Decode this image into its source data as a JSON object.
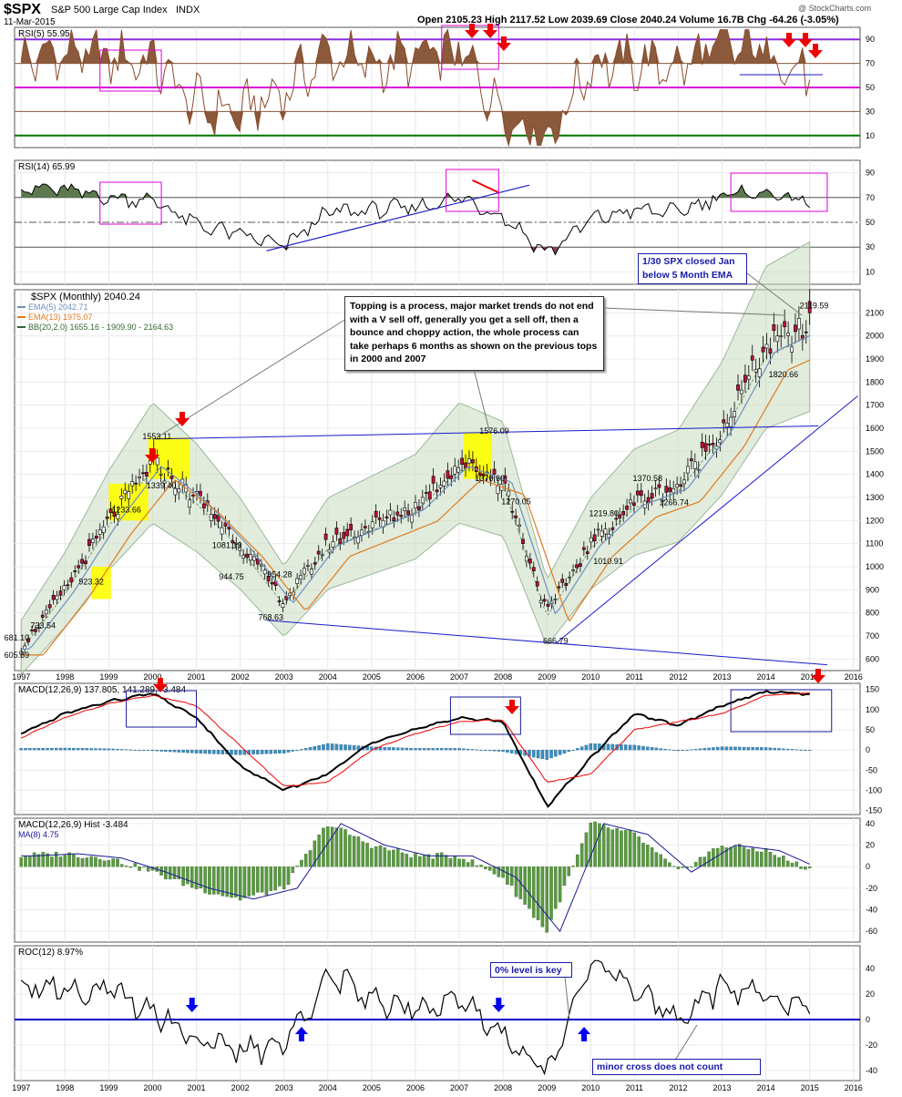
{
  "header": {
    "symbol": "$SPX",
    "name": "S&P 500 Large Cap Index",
    "exchange": "INDX",
    "date": "11-Mar-2015",
    "quote": "Open 2105.23  High 2117.52  Low 2039.69  Close 2040.24  Volume 16.7B  Chg -64.26 (-3.05%)",
    "watermark": "@ StockCharts.com"
  },
  "annotations": {
    "topping": "Topping is a process, major market trends do not end with a V sell off, generally you get a sell off, then a bounce and choppy action, the whole process can take perhaps 6 months as shown on the previous tops in 2000 and 2007",
    "closed": "1/30 SPX closed Jan below 5 Month EMA",
    "zero_level": "0% level is key",
    "minor_cross": "minor cross does not count"
  },
  "colors": {
    "rsi_fill": "#8b5a3c",
    "rsi14_fill": "#5d7a4f",
    "ema5": "#6f8fbf",
    "ema13": "#e07a1f",
    "band": "#c8dcc0",
    "hist": "#3a8fc0",
    "hist2": "#5a9a40",
    "trend": "#1a1acc",
    "magenta": "#dd00dd",
    "purple": "#8a2be2",
    "arrow_red": "#ee0000",
    "arrow_blue": "#0000ee",
    "highlight": "#ffff00"
  },
  "chart_data": [
    {
      "type": "line",
      "title": "RSI(5) 55.95",
      "x": [
        1997,
        1998,
        1999,
        2000,
        2001,
        2002,
        2003,
        2004,
        2005,
        2006,
        2007,
        2008,
        2009,
        2010,
        2011,
        2012,
        2013,
        2014,
        2015
      ],
      "series": [
        {
          "name": "RSI(5) 55.95",
          "values": [
            72,
            80,
            74,
            72,
            35,
            28,
            48,
            78,
            68,
            74,
            80,
            30,
            5,
            70,
            70,
            68,
            84,
            82,
            56
          ]
        }
      ],
      "ylim": [
        0,
        100
      ],
      "hlines": [
        10,
        30,
        50,
        70,
        90
      ],
      "ticks": [
        10,
        30,
        50,
        70,
        90
      ]
    },
    {
      "type": "line",
      "title": "RSI(14) 65.99",
      "x": [
        1997,
        1998,
        1999,
        2000,
        2001,
        2002,
        2003,
        2004,
        2005,
        2006,
        2007,
        2008,
        2009,
        2010,
        2011,
        2012,
        2013,
        2014,
        2015
      ],
      "series": [
        {
          "name": "RSI(14) 65.99",
          "values": [
            78,
            76,
            70,
            68,
            48,
            40,
            30,
            58,
            60,
            62,
            70,
            55,
            25,
            52,
            60,
            58,
            72,
            74,
            66
          ]
        }
      ],
      "ylim": [
        0,
        100
      ],
      "hlines": [
        30,
        50,
        70
      ],
      "ticks": [
        10,
        30,
        50,
        70,
        90
      ]
    },
    {
      "type": "line",
      "title": "$SPX (Monthly) 2040.24",
      "legend": [
        "EMA(5) 2042.71",
        "EMA(13) 1975.07",
        "BB(20,2.0) 1655.16 - 1909.90 - 2164.63"
      ],
      "x": [
        1997,
        1998,
        1999,
        2000,
        2001,
        2002,
        2003,
        2004,
        2005,
        2006,
        2007,
        2008,
        2009,
        2010,
        2011,
        2012,
        2013,
        2014,
        2015
      ],
      "series": [
        {
          "name": "$SPX (Monthly) 2040.24",
          "values": [
            650,
            900,
            1200,
            1450,
            1300,
            1100,
            850,
            1100,
            1180,
            1260,
            1450,
            1380,
            800,
            1100,
            1280,
            1350,
            1600,
            1950,
            2040
          ]
        }
      ],
      "ylim": [
        550,
        2200
      ],
      "ticks": [
        600,
        700,
        800,
        900,
        1000,
        1100,
        1200,
        1300,
        1400,
        1500,
        1600,
        1700,
        1800,
        1900,
        2000,
        2100
      ],
      "labels": [
        {
          "text": "681.10",
          "x": 1996.9,
          "y": 681
        },
        {
          "text": "605.89",
          "x": 1996.9,
          "y": 606
        },
        {
          "text": "733.54",
          "x": 1997.5,
          "y": 733
        },
        {
          "text": "923.32",
          "x": 1998.6,
          "y": 923
        },
        {
          "text": "1233.66",
          "x": 1999.4,
          "y": 1234
        },
        {
          "text": "1339.40",
          "x": 2000.2,
          "y": 1339
        },
        {
          "text": "1553.11",
          "x": 2000.1,
          "y": 1553
        },
        {
          "text": "1081.19",
          "x": 2001.7,
          "y": 1081
        },
        {
          "text": "944.75",
          "x": 2001.8,
          "y": 945
        },
        {
          "text": "954.28",
          "x": 2002.9,
          "y": 954
        },
        {
          "text": "768.63",
          "x": 2002.7,
          "y": 769
        },
        {
          "text": "1576.09",
          "x": 2007.8,
          "y": 1576
        },
        {
          "text": "1370.60",
          "x": 2007.7,
          "y": 1371
        },
        {
          "text": "1270.05",
          "x": 2008.3,
          "y": 1270
        },
        {
          "text": "666.79",
          "x": 2009.2,
          "y": 667
        },
        {
          "text": "1219.80",
          "x": 2010.3,
          "y": 1220
        },
        {
          "text": "1010.91",
          "x": 2010.4,
          "y": 1011
        },
        {
          "text": "1370.58",
          "x": 2011.3,
          "y": 1371
        },
        {
          "text": "1266.74",
          "x": 2011.9,
          "y": 1267
        },
        {
          "text": "1820.66",
          "x": 2014.4,
          "y": 1821
        },
        {
          "text": "2119.59",
          "x": 2015.1,
          "y": 2120
        }
      ]
    },
    {
      "type": "line",
      "title": "MACD(12,26,9) 137.805, 141.289, -3.484",
      "x": [
        1997,
        1998,
        1999,
        2000,
        2001,
        2002,
        2003,
        2004,
        2005,
        2006,
        2007,
        2008,
        2009,
        2010,
        2011,
        2012,
        2013,
        2014,
        2015
      ],
      "series": [
        {
          "name": "MACD",
          "values": [
            40,
            90,
            120,
            140,
            80,
            -40,
            -100,
            -60,
            20,
            50,
            80,
            70,
            -140,
            -20,
            90,
            60,
            110,
            145,
            138
          ]
        },
        {
          "name": "Signal",
          "values": [
            30,
            80,
            115,
            135,
            110,
            10,
            -90,
            -80,
            0,
            40,
            70,
            75,
            -80,
            -60,
            50,
            70,
            90,
            135,
            141
          ]
        }
      ],
      "ylim": [
        -160,
        165
      ],
      "ticks": [
        -150,
        -100,
        -50,
        0,
        50,
        100,
        150
      ]
    },
    {
      "type": "bar",
      "title": "MACD(12,26,9) Hist -3.484",
      "legend": [
        "MA(8) 4.75"
      ],
      "x": [
        1997,
        1998,
        1999,
        2000,
        2001,
        2002,
        2003,
        2004,
        2005,
        2006,
        2007,
        2008,
        2009,
        2010,
        2011,
        2012,
        2013,
        2014,
        2015
      ],
      "values": [
        10,
        12,
        8,
        -5,
        -20,
        -30,
        -20,
        40,
        20,
        10,
        10,
        -10,
        -60,
        40,
        30,
        -5,
        20,
        15,
        -3
      ],
      "ylim": [
        -70,
        45
      ],
      "ticks": [
        -60,
        -40,
        -20,
        0,
        20,
        40
      ]
    },
    {
      "type": "line",
      "title": "ROC(12) 8.97%",
      "x": [
        1997,
        1998,
        1999,
        2000,
        2001,
        2002,
        2003,
        2004,
        2005,
        2006,
        2007,
        2008,
        2009,
        2010,
        2011,
        2012,
        2013,
        2014,
        2015
      ],
      "series": [
        {
          "name": "ROC(12) 8.97%",
          "values": [
            30,
            25,
            22,
            8,
            -15,
            -25,
            -20,
            35,
            15,
            12,
            14,
            -10,
            -45,
            50,
            20,
            2,
            25,
            20,
            9
          ]
        }
      ],
      "ylim": [
        -48,
        58
      ],
      "ticks": [
        -40,
        -20,
        0,
        20,
        40
      ]
    }
  ],
  "x_axis": {
    "ticks": [
      "1997",
      "1998",
      "1999",
      "2000",
      "2001",
      "2002",
      "2003",
      "2004",
      "2005",
      "2006",
      "2007",
      "2008",
      "2009",
      "2010",
      "2011",
      "2012",
      "2013",
      "2014",
      "2015",
      "2016"
    ]
  }
}
